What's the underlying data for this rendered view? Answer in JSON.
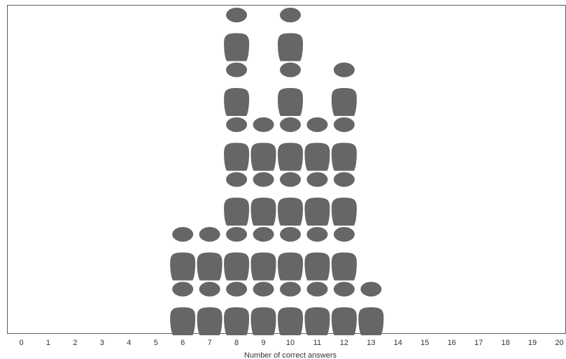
{
  "chart_data": {
    "type": "pictograph",
    "icon": "person-icon",
    "icon_color": "#666666",
    "xlabel": "Number of correct answers",
    "x_ticks": [
      "0",
      "1",
      "2",
      "3",
      "4",
      "5",
      "6",
      "7",
      "8",
      "9",
      "10",
      "11",
      "12",
      "13",
      "14",
      "15",
      "16",
      "17",
      "18",
      "19",
      "20"
    ],
    "xlim": [
      0,
      20
    ],
    "counts": [
      {
        "x": 6,
        "count": 2
      },
      {
        "x": 7,
        "count": 2
      },
      {
        "x": 8,
        "count": 6
      },
      {
        "x": 9,
        "count": 4
      },
      {
        "x": 10,
        "count": 6
      },
      {
        "x": 11,
        "count": 4
      },
      {
        "x": 12,
        "count": 5
      },
      {
        "x": 13,
        "count": 1
      }
    ]
  }
}
